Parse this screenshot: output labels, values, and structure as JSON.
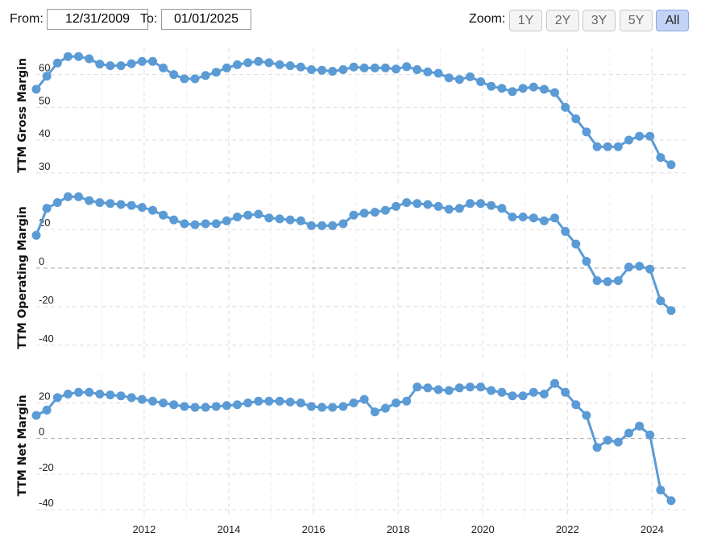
{
  "toolbar": {
    "from_label": "From:",
    "from_value": "12/31/2009",
    "to_label": "To:",
    "to_value": "01/01/2025",
    "zoom_label": "Zoom:",
    "zoom_options": [
      "1Y",
      "2Y",
      "3Y",
      "5Y",
      "All"
    ],
    "zoom_selected": "All"
  },
  "colors": {
    "series": "#5b9bd5",
    "grid": "#dddddd",
    "zero_line": "#aaaaaa"
  },
  "chart_data": [
    {
      "type": "line",
      "ylabel": "TTM Gross Margin",
      "ylim": [
        27,
        68
      ],
      "yticks": [
        30,
        40,
        50,
        60
      ],
      "x": [
        2009.75,
        2010.0,
        2010.25,
        2010.5,
        2010.75,
        2011.0,
        2011.25,
        2011.5,
        2011.75,
        2012.0,
        2012.25,
        2012.5,
        2012.75,
        2013.0,
        2013.25,
        2013.5,
        2013.75,
        2014.0,
        2014.25,
        2014.5,
        2014.75,
        2015.0,
        2015.25,
        2015.5,
        2015.75,
        2016.0,
        2016.25,
        2016.5,
        2016.75,
        2017.0,
        2017.25,
        2017.5,
        2017.75,
        2018.0,
        2018.25,
        2018.5,
        2018.75,
        2019.0,
        2019.25,
        2019.5,
        2019.75,
        2020.0,
        2020.25,
        2020.5,
        2020.75,
        2021.0,
        2021.25,
        2021.5,
        2021.75,
        2022.0,
        2022.25,
        2022.5,
        2022.75,
        2023.0,
        2023.25,
        2023.5,
        2023.75,
        2024.0,
        2024.25,
        2024.5,
        2024.75
      ],
      "values": [
        55.5,
        59.5,
        63.5,
        65.5,
        65.5,
        64.8,
        63.2,
        62.7,
        62.7,
        63.3,
        64.0,
        64.0,
        62.0,
        60.0,
        58.7,
        58.7,
        59.7,
        60.7,
        62.0,
        63.0,
        63.6,
        64.0,
        63.6,
        63.0,
        62.7,
        62.3,
        61.5,
        61.3,
        61.0,
        61.5,
        62.3,
        62.0,
        62.0,
        62.0,
        61.7,
        62.4,
        61.5,
        60.8,
        60.4,
        59.0,
        58.5,
        59.3,
        57.8,
        56.4,
        55.8,
        54.8,
        55.8,
        56.2,
        55.5,
        54.5,
        50.0,
        46.5,
        42.5,
        38.0,
        38.0,
        38.0,
        40.0,
        41.2,
        41.2,
        34.7,
        32.5
      ]
    },
    {
      "type": "line",
      "ylabel": "TTM Operating Margin",
      "ylim": [
        -48,
        38
      ],
      "yticks": [
        -40,
        -20,
        0,
        20
      ],
      "x": [
        2009.75,
        2010.0,
        2010.25,
        2010.5,
        2010.75,
        2011.0,
        2011.25,
        2011.5,
        2011.75,
        2012.0,
        2012.25,
        2012.5,
        2012.75,
        2013.0,
        2013.25,
        2013.5,
        2013.75,
        2014.0,
        2014.25,
        2014.5,
        2014.75,
        2015.0,
        2015.25,
        2015.5,
        2015.75,
        2016.0,
        2016.25,
        2016.5,
        2016.75,
        2017.0,
        2017.25,
        2017.5,
        2017.75,
        2018.0,
        2018.25,
        2018.5,
        2018.75,
        2019.0,
        2019.25,
        2019.5,
        2019.75,
        2020.0,
        2020.25,
        2020.5,
        2020.75,
        2021.0,
        2021.25,
        2021.5,
        2021.75,
        2022.0,
        2022.25,
        2022.5,
        2022.75,
        2023.0,
        2023.25,
        2023.5,
        2023.75,
        2024.0,
        2024.25,
        2024.5,
        2024.75
      ],
      "values": [
        17.0,
        31.0,
        34.0,
        37.0,
        37.0,
        35.0,
        34.0,
        33.5,
        33.0,
        32.5,
        31.5,
        30.0,
        27.5,
        25.0,
        23.0,
        22.5,
        23.0,
        23.0,
        24.5,
        26.5,
        27.5,
        28.0,
        26.0,
        25.5,
        25.0,
        24.5,
        22.0,
        22.0,
        22.0,
        23.0,
        27.5,
        28.5,
        29.0,
        30.0,
        32.0,
        34.0,
        33.5,
        33.0,
        32.0,
        30.5,
        31.0,
        33.5,
        33.5,
        32.5,
        31.0,
        26.5,
        26.5,
        26.0,
        24.5,
        26.0,
        19.0,
        12.5,
        3.5,
        -6.5,
        -7.0,
        -6.5,
        0.5,
        1.0,
        -0.5,
        -17.0,
        -22.0
      ]
    },
    {
      "type": "line",
      "ylabel": "TTM Net Margin",
      "ylim": [
        -45,
        37
      ],
      "yticks": [
        -40,
        -20,
        0,
        20
      ],
      "x": [
        2009.75,
        2010.0,
        2010.25,
        2010.5,
        2010.75,
        2011.0,
        2011.25,
        2011.5,
        2011.75,
        2012.0,
        2012.25,
        2012.5,
        2012.75,
        2013.0,
        2013.25,
        2013.5,
        2013.75,
        2014.0,
        2014.25,
        2014.5,
        2014.75,
        2015.0,
        2015.25,
        2015.5,
        2015.75,
        2016.0,
        2016.25,
        2016.5,
        2016.75,
        2017.0,
        2017.25,
        2017.5,
        2017.75,
        2018.0,
        2018.25,
        2018.5,
        2018.75,
        2019.0,
        2019.25,
        2019.5,
        2019.75,
        2020.0,
        2020.25,
        2020.5,
        2020.75,
        2021.0,
        2021.25,
        2021.5,
        2021.75,
        2022.0,
        2022.25,
        2022.5,
        2022.75,
        2023.0,
        2023.25,
        2023.5,
        2023.75,
        2024.0,
        2024.25,
        2024.5,
        2024.75
      ],
      "values": [
        13.0,
        16.0,
        23.0,
        25.0,
        26.0,
        26.0,
        25.0,
        24.5,
        24.0,
        23.0,
        22.0,
        21.0,
        20.0,
        19.0,
        18.0,
        17.5,
        17.5,
        18.0,
        18.5,
        19.0,
        20.0,
        21.0,
        21.0,
        21.0,
        20.5,
        20.0,
        18.0,
        17.5,
        17.5,
        18.0,
        20.0,
        22.0,
        15.0,
        17.0,
        20.0,
        21.0,
        29.0,
        28.5,
        27.5,
        27.0,
        28.5,
        29.0,
        29.0,
        27.0,
        26.0,
        24.0,
        24.0,
        26.0,
        25.0,
        31.0,
        26.0,
        19.0,
        13.0,
        -5.0,
        -1.0,
        -2.0,
        3.0,
        7.0,
        2.0,
        -29.0,
        -35.0
      ]
    }
  ],
  "x_axis": {
    "ticks": [
      "2012",
      "2014",
      "2016",
      "2018",
      "2020",
      "2022",
      "2024"
    ],
    "tick_values": [
      2012.3,
      2014.3,
      2016.3,
      2018.3,
      2020.3,
      2022.3,
      2024.3
    ]
  }
}
